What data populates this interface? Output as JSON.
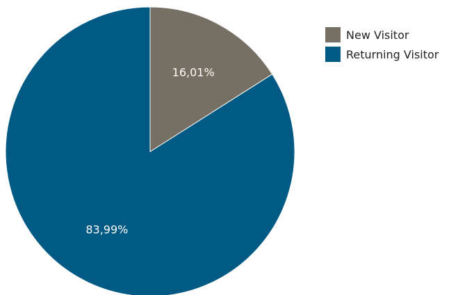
{
  "chart_data": {
    "type": "pie",
    "title": "",
    "start_angle": "top",
    "direction": "clockwise",
    "legend_position": "top-right",
    "slices": [
      {
        "label": "New Visitor",
        "value": 16.01,
        "display": "16,01%",
        "color": "#767064"
      },
      {
        "label": "Returning Visitor",
        "value": 83.99,
        "display": "83,99%",
        "color": "#005a84"
      }
    ]
  }
}
